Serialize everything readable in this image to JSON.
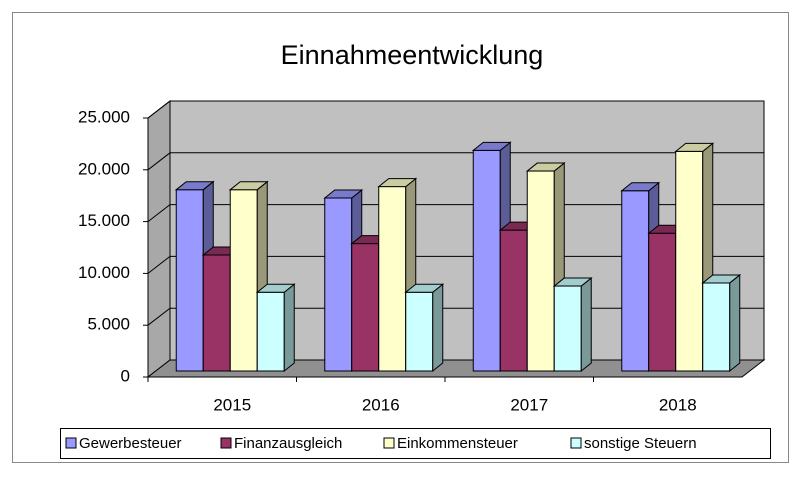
{
  "chart_data": {
    "type": "bar3d",
    "title": "Einnahmeentwicklung",
    "categories": [
      "2015",
      "2016",
      "2017",
      "2018"
    ],
    "series": [
      {
        "name": "Gewerbesteuer",
        "color": "#9999ff",
        "values": [
          17500,
          16700,
          21300,
          17400
        ]
      },
      {
        "name": "Finanzausgleich",
        "color": "#993366",
        "values": [
          11200,
          12300,
          13600,
          13300
        ]
      },
      {
        "name": "Einkommensteuer",
        "color": "#ffffcc",
        "values": [
          17500,
          17800,
          19300,
          21200
        ]
      },
      {
        "name": "sonstige Steuern",
        "color": "#ccffff",
        "values": [
          7600,
          7600,
          8200,
          8500
        ]
      }
    ],
    "ylim": [
      0,
      25000
    ],
    "yticks": [
      0,
      {
        "value": 5000,
        "label": "5.000"
      },
      {
        "value": 10000,
        "label": "10.000"
      },
      {
        "value": 15000,
        "label": "15.000"
      },
      {
        "value": 20000,
        "label": "20.000"
      },
      {
        "value": 25000,
        "label": "25.000"
      }
    ],
    "grid": true,
    "legend": "bottom"
  }
}
